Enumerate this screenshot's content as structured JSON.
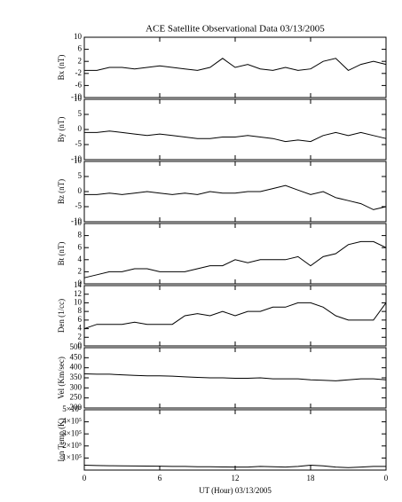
{
  "title": "ACE Satellite Observational Data   03/13/2005",
  "x_axis": {
    "label": "UT (Hour)  03/13/2005",
    "xlim": [
      0,
      24
    ],
    "xticks": [
      0,
      6,
      12,
      18,
      {
        "value": 24,
        "label": "0"
      }
    ],
    "x": [
      0,
      1,
      2,
      3,
      4,
      5,
      6,
      7,
      8,
      9,
      10,
      11,
      12,
      13,
      14,
      15,
      16,
      17,
      18,
      19,
      20,
      21,
      22,
      23,
      24
    ]
  },
  "chart_data": [
    {
      "type": "line",
      "ylabel": "Bx (nT)",
      "color": "#000000",
      "ylim": [
        -10,
        10
      ],
      "yticks": [
        -10,
        -6,
        -2,
        2,
        6,
        10
      ],
      "values": [
        -1,
        -1,
        0,
        0,
        -0.5,
        0,
        0.5,
        0,
        -0.5,
        -1,
        0,
        3,
        0,
        1,
        -0.5,
        -1,
        0,
        -1,
        -0.5,
        2,
        3,
        -1,
        1,
        2,
        1
      ]
    },
    {
      "type": "line",
      "ylabel": "By (nT)",
      "color": "#000000",
      "ylim": [
        -10,
        10
      ],
      "yticks": [
        -10,
        -5,
        0,
        5,
        10
      ],
      "values": [
        -1,
        -1,
        -0.5,
        -1,
        -1.5,
        -2,
        -1.5,
        -2,
        -2.5,
        -3,
        -3,
        -2.5,
        -2.5,
        -2,
        -2.5,
        -3,
        -4,
        -3.5,
        -4,
        -2,
        -1,
        -2,
        -1,
        -2,
        -3
      ]
    },
    {
      "type": "line",
      "ylabel": "Bz (nT)",
      "color": "#000000",
      "ylim": [
        -10,
        10
      ],
      "yticks": [
        -10,
        -5,
        0,
        5,
        10
      ],
      "values": [
        -1,
        -1,
        -0.5,
        -1,
        -0.5,
        0,
        -0.5,
        -1,
        -0.5,
        -1,
        0,
        -0.5,
        -0.5,
        0,
        0,
        1,
        2,
        0.5,
        -1,
        0,
        -2,
        -3,
        -4,
        -6,
        -5
      ]
    },
    {
      "type": "line",
      "ylabel": "Bt (nT)",
      "color": "#000000",
      "ylim": [
        0,
        10
      ],
      "yticks": [
        0,
        2,
        4,
        6,
        8,
        10
      ],
      "values": [
        1,
        1.5,
        2,
        2,
        2.5,
        2.5,
        2,
        2,
        2,
        2.5,
        3,
        3,
        4,
        3.5,
        4,
        4,
        4,
        4.5,
        3,
        4.5,
        5,
        6.5,
        7,
        7,
        6
      ]
    },
    {
      "type": "line",
      "ylabel": "Den (1/cc)",
      "color": "#000000",
      "ylim": [
        0,
        14
      ],
      "yticks": [
        0,
        2,
        4,
        6,
        8,
        10,
        12,
        14
      ],
      "values": [
        4,
        5,
        5,
        5,
        5.5,
        5,
        5,
        5,
        7,
        7.5,
        7,
        8,
        7,
        8,
        8,
        9,
        9,
        10,
        10,
        9,
        7,
        6,
        6,
        6,
        10
      ]
    },
    {
      "type": "line",
      "ylabel": "Vel (Km/sec)",
      "color": "#000000",
      "ylim": [
        200,
        500
      ],
      "yticks": [
        200,
        250,
        300,
        350,
        400,
        450,
        500
      ],
      "values": [
        370,
        368,
        368,
        365,
        362,
        360,
        360,
        358,
        355,
        352,
        350,
        350,
        348,
        348,
        350,
        345,
        345,
        345,
        340,
        338,
        335,
        340,
        345,
        345,
        340
      ]
    },
    {
      "type": "line",
      "ylabel": "Ion Temp (K)",
      "color": "#000000",
      "ylim": [
        0,
        500000
      ],
      "yticks": [
        {
          "value": 100000,
          "label": "1×10⁵"
        },
        {
          "value": 200000,
          "label": "2×10⁵"
        },
        {
          "value": 300000,
          "label": "3×10⁵"
        },
        {
          "value": 400000,
          "label": "4×10⁵"
        },
        {
          "value": 500000,
          "label": "5×10⁵"
        }
      ],
      "values": [
        40000,
        38000,
        36000,
        35000,
        34000,
        33000,
        32000,
        30000,
        30000,
        28000,
        28000,
        26000,
        25000,
        25000,
        30000,
        28000,
        25000,
        30000,
        40000,
        35000,
        25000,
        20000,
        25000,
        30000,
        30000
      ]
    }
  ]
}
